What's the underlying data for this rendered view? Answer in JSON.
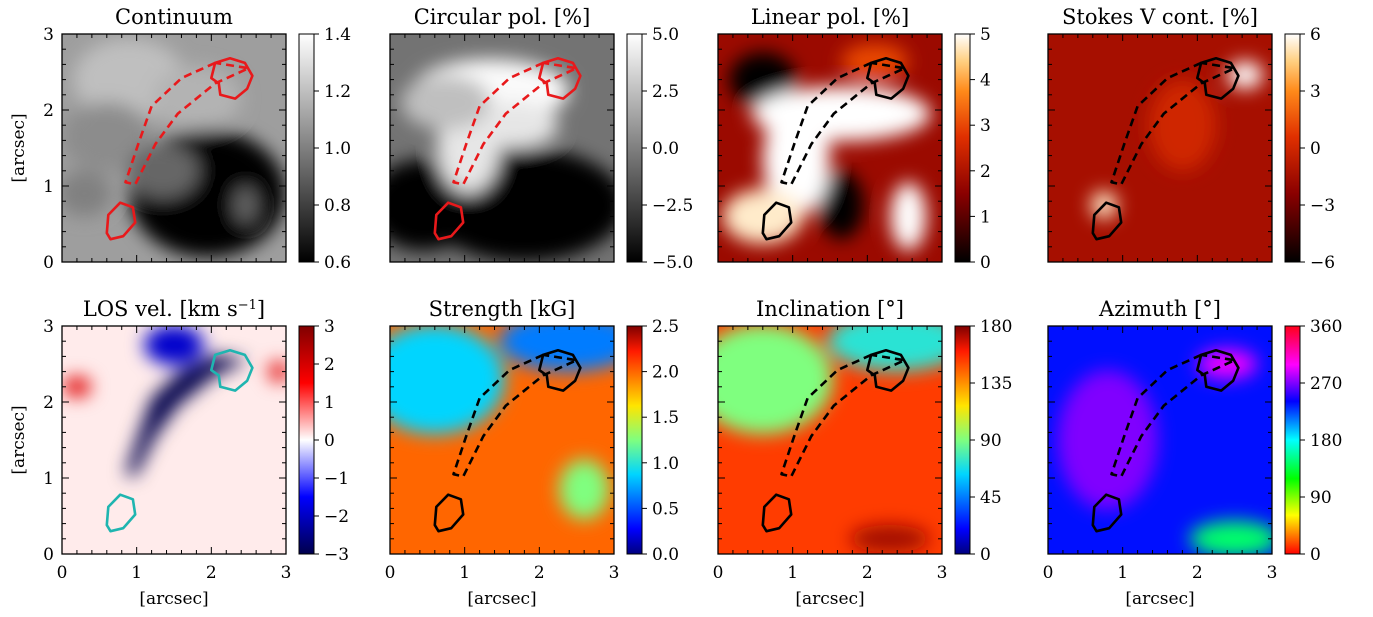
{
  "chart_data": [
    {
      "type": "heatmap",
      "title": "Continuum",
      "colormap": "gray",
      "clim": [
        0.6,
        1.4
      ],
      "colorbar_ticks": [
        "0.6",
        "0.8",
        "1.0",
        "1.2",
        "1.4"
      ],
      "contour_color": "#e8191b",
      "xlabel": "",
      "ylabel": "[arcsec]",
      "xlim": [
        0,
        3
      ],
      "ylim": [
        0,
        3
      ],
      "xticks": [],
      "yticks": [
        "0",
        "1",
        "2",
        "3"
      ]
    },
    {
      "type": "heatmap",
      "title": "Circular pol. [%]",
      "colormap": "gray",
      "clim": [
        -5.0,
        5.0
      ],
      "colorbar_ticks": [
        "−5.0",
        "−2.5",
        "0.0",
        "2.5",
        "5.0"
      ],
      "contour_color": "#e8191b",
      "xlabel": "",
      "ylabel": "",
      "xlim": [
        0,
        3
      ],
      "ylim": [
        0,
        3
      ],
      "xticks": [],
      "yticks": []
    },
    {
      "type": "heatmap",
      "title": "Linear pol. [%]",
      "colormap": "gist_heat",
      "clim": [
        0,
        5
      ],
      "colorbar_ticks": [
        "0",
        "1",
        "2",
        "3",
        "4",
        "5"
      ],
      "contour_color": "#000000",
      "xlabel": "",
      "ylabel": "",
      "xlim": [
        0,
        3
      ],
      "ylim": [
        0,
        3
      ],
      "xticks": [],
      "yticks": []
    },
    {
      "type": "heatmap",
      "title": "Stokes V cont. [%]",
      "colormap": "gist_heat",
      "clim": [
        -6,
        6
      ],
      "colorbar_ticks": [
        "−6",
        "−3",
        "0",
        "3",
        "6"
      ],
      "contour_color": "#000000",
      "xlabel": "",
      "ylabel": "",
      "xlim": [
        0,
        3
      ],
      "ylim": [
        0,
        3
      ],
      "xticks": [],
      "yticks": []
    },
    {
      "type": "heatmap",
      "title": "LOS vel. [km s",
      "title_sup": "−1",
      "title_end": "]",
      "colormap": "seismic",
      "clim": [
        -3,
        3
      ],
      "colorbar_ticks": [
        "−3",
        "−2",
        "−1",
        "0",
        "1",
        "2",
        "3"
      ],
      "contour_color": "#1fb5b0",
      "xlabel": "[arcsec]",
      "ylabel": "[arcsec]",
      "xlim": [
        0,
        3
      ],
      "ylim": [
        0,
        3
      ],
      "xticks": [
        "0",
        "1",
        "2",
        "3"
      ],
      "yticks": [
        "0",
        "1",
        "2",
        "3"
      ]
    },
    {
      "type": "heatmap",
      "title": "Strength [kG]",
      "colormap": "jet",
      "clim": [
        0.0,
        2.5
      ],
      "colorbar_ticks": [
        "0.0",
        "0.5",
        "1.0",
        "1.5",
        "2.0",
        "2.5"
      ],
      "contour_color": "#000000",
      "xlabel": "[arcsec]",
      "ylabel": "",
      "xlim": [
        0,
        3
      ],
      "ylim": [
        0,
        3
      ],
      "xticks": [
        "0",
        "1",
        "2",
        "3"
      ],
      "yticks": []
    },
    {
      "type": "heatmap",
      "title": "Inclination [°]",
      "colormap": "jet",
      "clim": [
        0,
        180
      ],
      "colorbar_ticks": [
        "0",
        "45",
        "90",
        "135",
        "180"
      ],
      "contour_color": "#000000",
      "xlabel": "[arcsec]",
      "ylabel": "",
      "xlim": [
        0,
        3
      ],
      "ylim": [
        0,
        3
      ],
      "xticks": [
        "0",
        "1",
        "2",
        "3"
      ],
      "yticks": []
    },
    {
      "type": "heatmap",
      "title": "Azimuth [°]",
      "colormap": "hsv",
      "clim": [
        0,
        360
      ],
      "colorbar_ticks": [
        "0",
        "90",
        "180",
        "270",
        "360"
      ],
      "contour_color": "#000000",
      "xlabel": "[arcsec]",
      "ylabel": "",
      "xlim": [
        0,
        3
      ],
      "ylim": [
        0,
        3
      ],
      "xticks": [
        "0",
        "1",
        "2",
        "3"
      ],
      "yticks": []
    }
  ]
}
